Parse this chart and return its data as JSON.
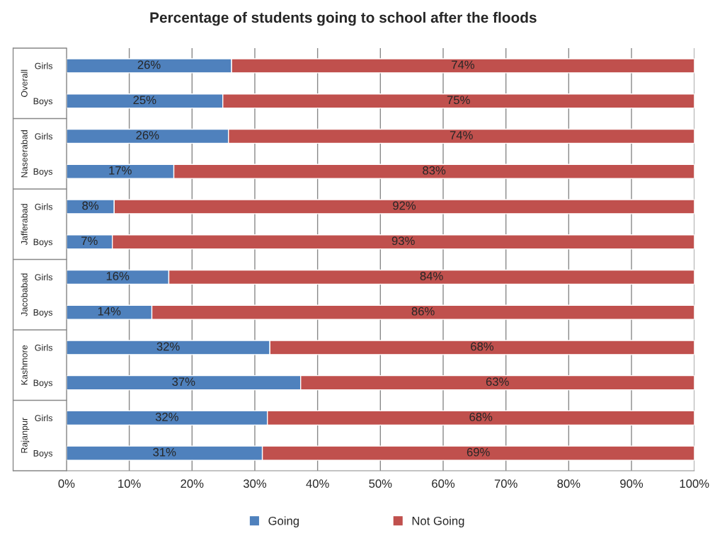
{
  "chart_data": {
    "type": "bar",
    "orientation": "horizontal",
    "stacked": true,
    "title": "Percentage of students going to school after the floods",
    "categories": [
      "Girls",
      "Boys",
      "Girls",
      "Boys",
      "Girls",
      "Boys",
      "Girls",
      "Boys",
      "Girls",
      "Boys",
      "Girls",
      "Boys"
    ],
    "annotations": [
      "Overall",
      "Naseerabad",
      "Jafferabad",
      "Jacobabad",
      "Kashmore",
      "Rajanpur"
    ],
    "series": [
      {
        "name": "Going",
        "color": "#4f81bd",
        "values": [
          26.3,
          24.9,
          25.8,
          17.1,
          7.6,
          7.3,
          16.3,
          13.6,
          32.4,
          37.3,
          32.0,
          31.2
        ],
        "value_labels": [
          "26%",
          "25%",
          "26%",
          "17%",
          "8%",
          "7%",
          "16%",
          "14%",
          "32%",
          "37%",
          "32%",
          "31%"
        ]
      },
      {
        "name": "Not Going",
        "color": "#c0504d",
        "values": [
          73.7,
          75.1,
          74.2,
          82.9,
          92.4,
          92.7,
          83.7,
          86.4,
          67.6,
          62.7,
          68.0,
          68.8
        ],
        "value_labels": [
          "74%",
          "75%",
          "74%",
          "83%",
          "92%",
          "93%",
          "84%",
          "86%",
          "68%",
          "63%",
          "68%",
          "69%"
        ]
      }
    ],
    "xlim": [
      0,
      100
    ],
    "xticks": [
      {
        "value": 0,
        "label": "0%"
      },
      {
        "value": 10,
        "label": "10%"
      },
      {
        "value": 20,
        "label": "20%"
      },
      {
        "value": 30,
        "label": "30%"
      },
      {
        "value": 40,
        "label": "40%"
      },
      {
        "value": 50,
        "label": "50%"
      },
      {
        "value": 60,
        "label": "60%"
      },
      {
        "value": 70,
        "label": "70%"
      },
      {
        "value": 80,
        "label": "80%"
      },
      {
        "value": 90,
        "label": "90%"
      },
      {
        "value": 100,
        "label": "100%"
      }
    ],
    "grid": "x",
    "legend": "bottom"
  }
}
